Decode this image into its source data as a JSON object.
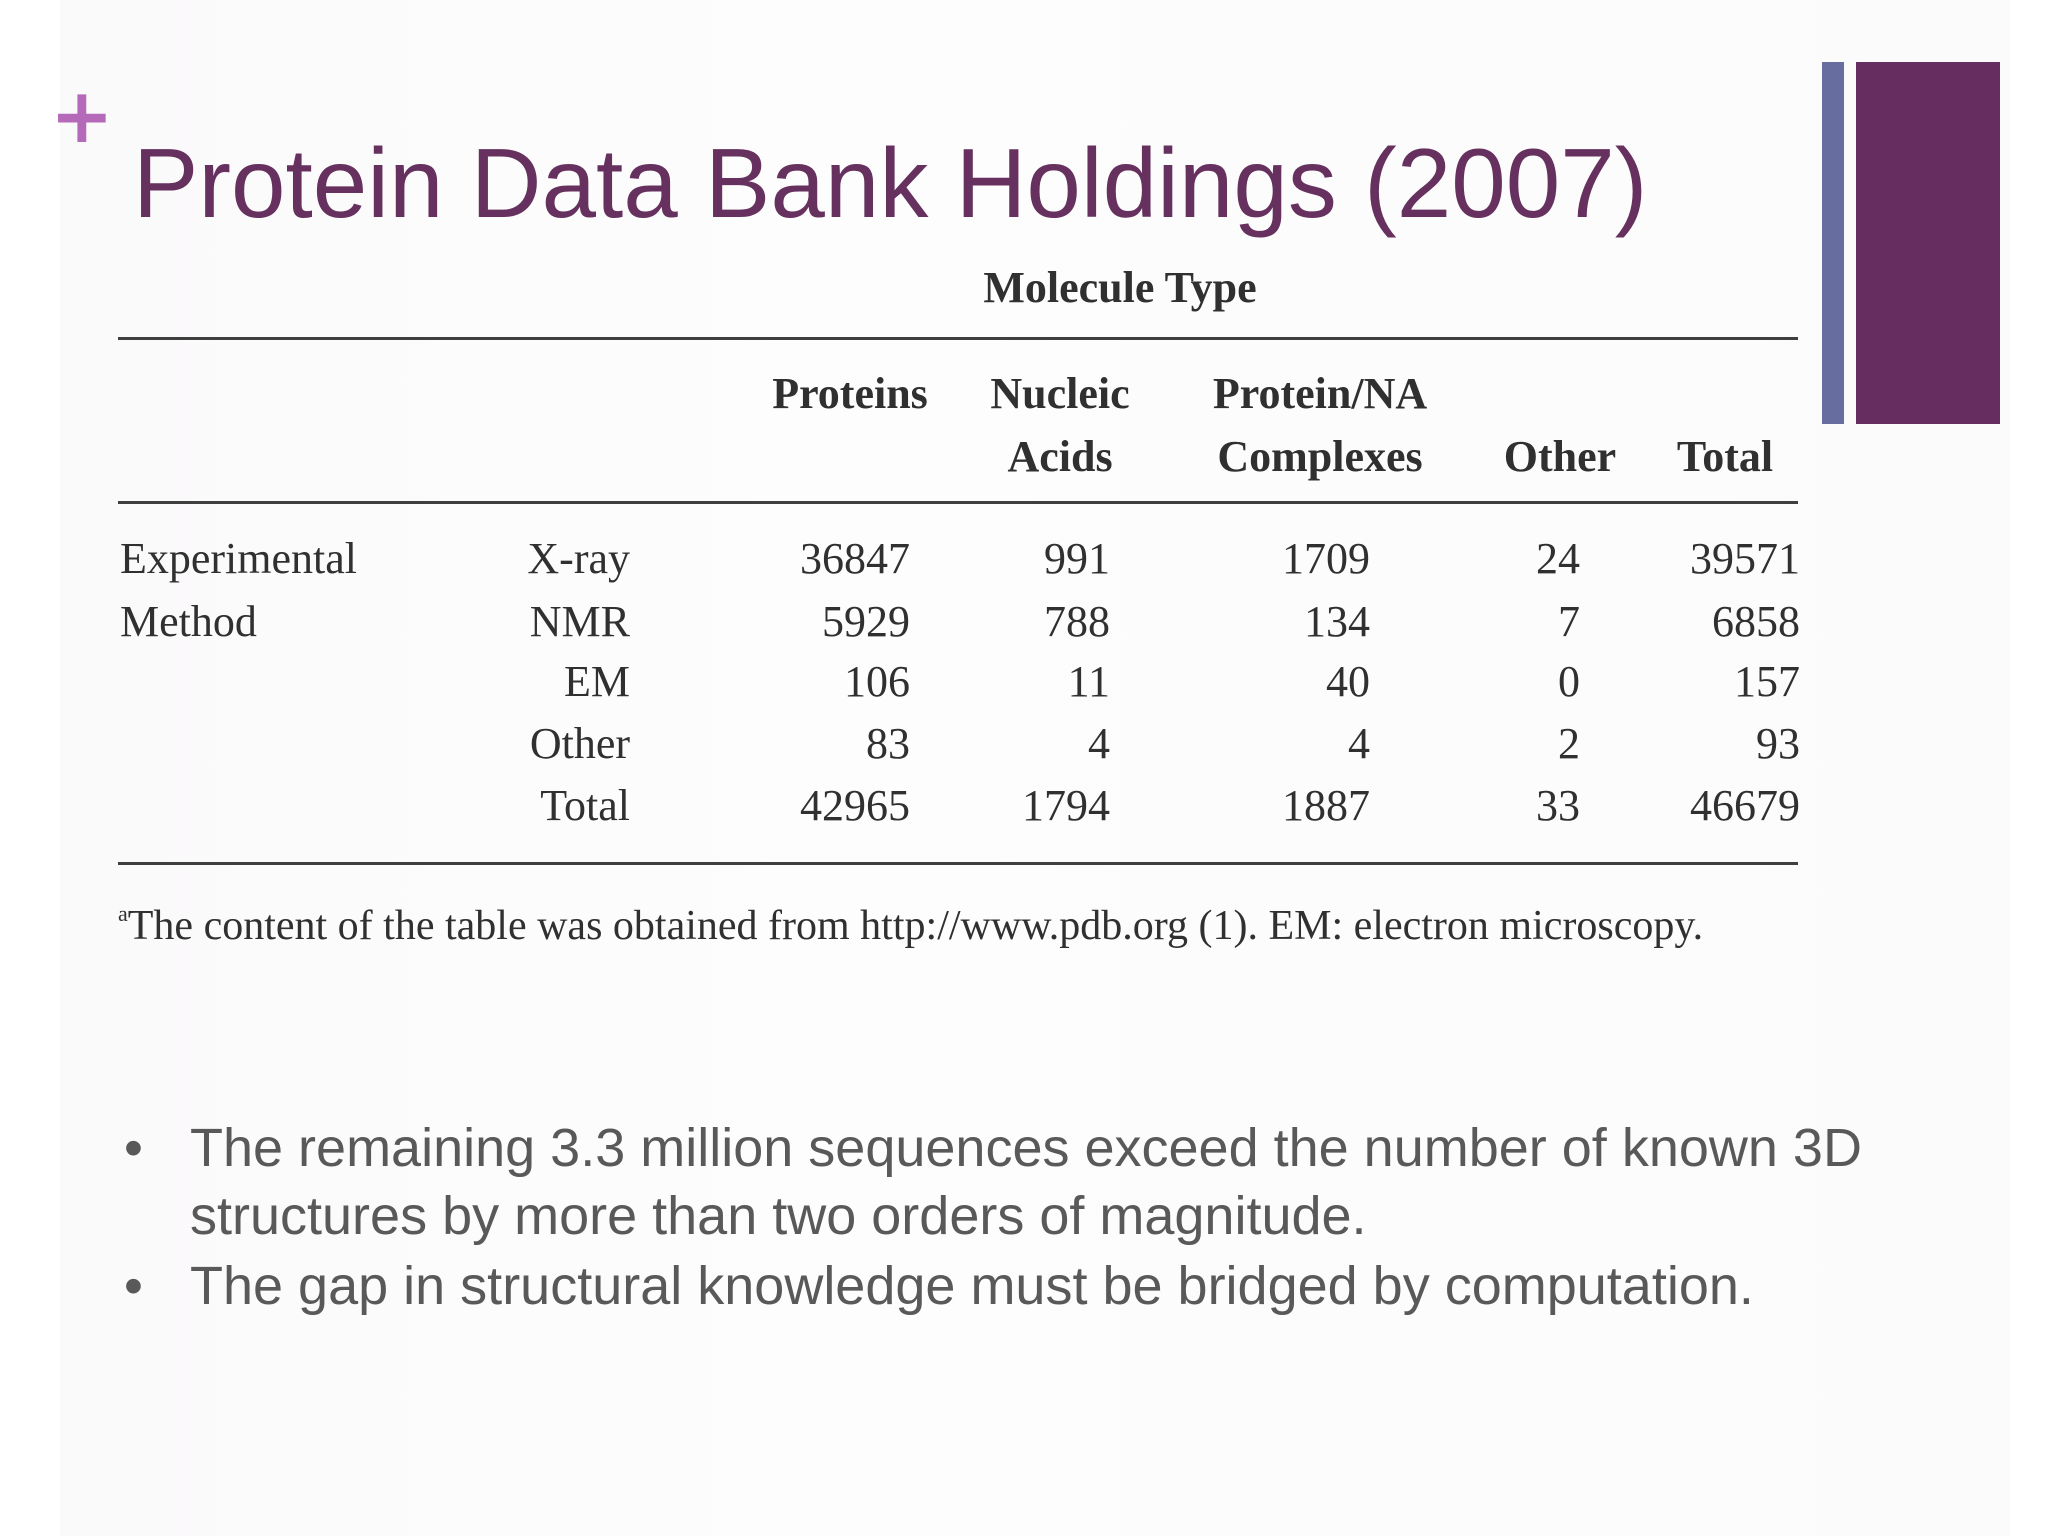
{
  "slide": {
    "plus_mark": "+",
    "title": "Protein Data Bank Holdings (2007)"
  },
  "table": {
    "group_header": "Molecule Type",
    "columns": {
      "proteins": "Proteins",
      "nucleic_line1": "Nucleic",
      "nucleic_line2": "Acids",
      "complex_line1": "Protein/NA",
      "complex_line2": "Complexes",
      "other": "Other",
      "total": "Total"
    },
    "row_group_line1": "Experimental",
    "row_group_line2": "Method",
    "rows": [
      {
        "method": "X-ray",
        "proteins": "36847",
        "nucleic": "991",
        "complexes": "1709",
        "other": "24",
        "total": "39571"
      },
      {
        "method": "NMR",
        "proteins": "5929",
        "nucleic": "788",
        "complexes": "134",
        "other": "7",
        "total": "6858"
      },
      {
        "method": "EM",
        "proteins": "106",
        "nucleic": "11",
        "complexes": "40",
        "other": "0",
        "total": "157"
      },
      {
        "method": "Other",
        "proteins": "83",
        "nucleic": "4",
        "complexes": "4",
        "other": "2",
        "total": "93"
      },
      {
        "method": "Total",
        "proteins": "42965",
        "nucleic": "1794",
        "complexes": "1887",
        "other": "33",
        "total": "46679"
      }
    ],
    "footnote_marker": "a",
    "footnote": "The content of the table was obtained from http://www.pdb.org (1). EM: electron microscopy."
  },
  "bullets": [
    "The remaining 3.3 million sequences exceed the number of known 3D structures by more than two orders of magnitude.",
    "The gap in structural knowledge must be bridged by computation."
  ],
  "bullet_glyph": "•",
  "colors": {
    "title": "#66305f",
    "plus": "#b56ab9",
    "bar_thin": "#676d9f",
    "bar_thick": "#662e60",
    "bullet_text": "#595959"
  }
}
